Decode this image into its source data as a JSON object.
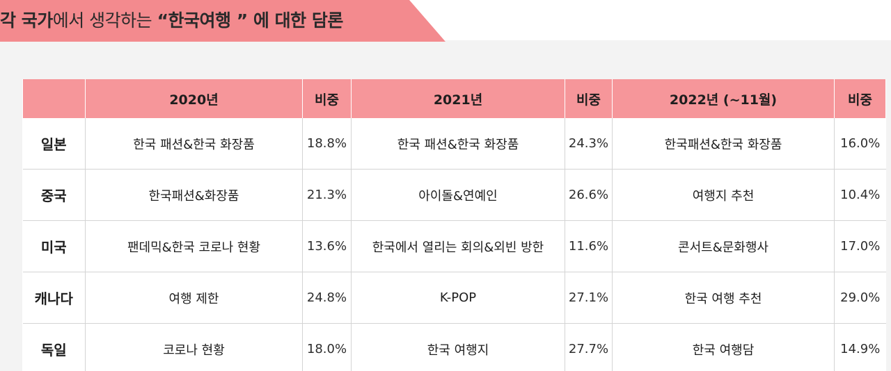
{
  "title": {
    "part1": "각 국가",
    "part2": "에서 생각하는 ",
    "part3": "“한국여행 ”",
    "part4": " 에 대한 담론"
  },
  "table": {
    "headers": [
      "",
      "2020년",
      "비중",
      "2021년",
      "비중",
      "2022년 (~11월)",
      "비중"
    ],
    "rows": [
      {
        "country": "일본",
        "t2020": "한국 패션&한국 화장품",
        "p2020": "18.8%",
        "t2021": "한국 패션&한국 화장품",
        "p2021": "24.3%",
        "t2022": "한국패션&한국 화장품",
        "p2022": "16.0%"
      },
      {
        "country": "중국",
        "t2020": "한국패션&화장품",
        "p2020": "21.3%",
        "t2021": "아이돌&연예인",
        "p2021": "26.6%",
        "t2022": "여행지 추천",
        "p2022": "10.4%"
      },
      {
        "country": "미국",
        "t2020": "팬데믹&한국 코로나 현황",
        "p2020": "13.6%",
        "t2021": "한국에서 열리는 회의&외빈 방한",
        "p2021": "11.6%",
        "t2022": "콘서트&문화행사",
        "p2022": "17.0%"
      },
      {
        "country": "캐나다",
        "t2020": "여행 제한",
        "p2020": "24.8%",
        "t2021": "K-POP",
        "p2021": "27.1%",
        "t2022": "한국 여행 추천",
        "p2022": "29.0%"
      },
      {
        "country": "독일",
        "t2020": "코로나 현황",
        "p2020": "18.0%",
        "t2021": "한국 여행지",
        "p2021": "27.7%",
        "t2022": "한국 여행담",
        "p2022": "14.9%"
      }
    ]
  },
  "colors": {
    "banner": "#f38a8e",
    "header": "#f6969a",
    "background": "#f3f3f3"
  }
}
